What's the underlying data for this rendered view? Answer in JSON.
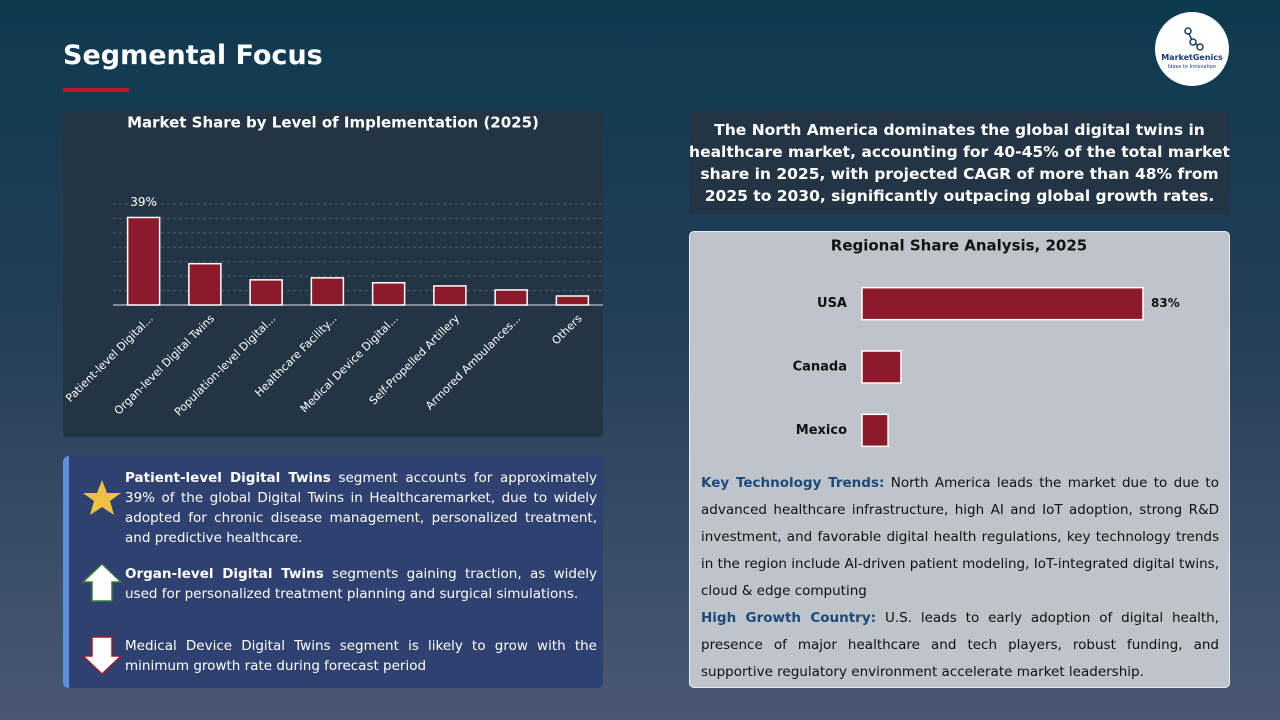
{
  "title": "Segmental Focus",
  "logo": {
    "name": "MarketGenics",
    "tagline": "Ideas to Innovation"
  },
  "chart_data": [
    {
      "type": "bar",
      "title": "Market Share by Level of Implementation (2025)",
      "categories": [
        "Patient-level Digital...",
        "Organ-level Digital Twins",
        "Population-level Digital...",
        "Healthcare Facility...",
        "Medical Device Digital...",
        "Self-Propelled Artillery",
        "Armored Ambulances...",
        "Others"
      ],
      "values": [
        39,
        18.4,
        11.2,
        12.1,
        9.9,
        8.5,
        6.7,
        4
      ],
      "value_labels": [
        "39%",
        null,
        null,
        null,
        null,
        null,
        null,
        null
      ],
      "color": "#8b1a2a",
      "ylim": [
        0,
        45
      ],
      "grid": true
    },
    {
      "type": "hbar",
      "title": "Regional Share Analysis, 2025",
      "categories": [
        "USA",
        "Canada",
        "Mexico"
      ],
      "values": [
        83,
        11.5,
        7.7
      ],
      "value_labels": [
        "83%",
        null,
        null
      ],
      "color": "#8b1a2a",
      "xlim": [
        0,
        83
      ]
    }
  ],
  "callout": "The North America dominates the global digital twins in healthcare market, accounting for 40-45% of the total market share in 2025, with projected CAGR of more than 48% from 2025 to 2030, significantly outpacing global growth rates.",
  "insights": [
    {
      "bold": "Patient-level Digital Twins",
      "text": "segment accounts for approximately 39% of the global Digital Twins in Healthcaremarket, due to widely adopted for chronic disease management, personalized treatment, and predictive healthcare."
    },
    {
      "bold": "Organ-level Digital Twins",
      "text": "segments gaining traction, as widely used for personalized treatment planning and surgical simulations."
    },
    {
      "text": "Medical Device Digital Twins segment is likely to grow with the minimum growth rate during forecast period"
    }
  ],
  "trends": [
    {
      "label": "Key Technology Trends:",
      "text": "North America leads the market due to due to advanced healthcare infrastructure, high AI and IoT adoption, strong R&D investment, and favorable digital health regulations, key technology trends in the region include AI-driven patient modeling, IoT-integrated digital twins, cloud & edge computing"
    },
    {
      "label": "High Growth Country:",
      "text": "U.S. leads to early adoption of digital health, presence of major healthcare and tech players, robust funding, and supportive regulatory environment accelerate market leadership."
    }
  ]
}
